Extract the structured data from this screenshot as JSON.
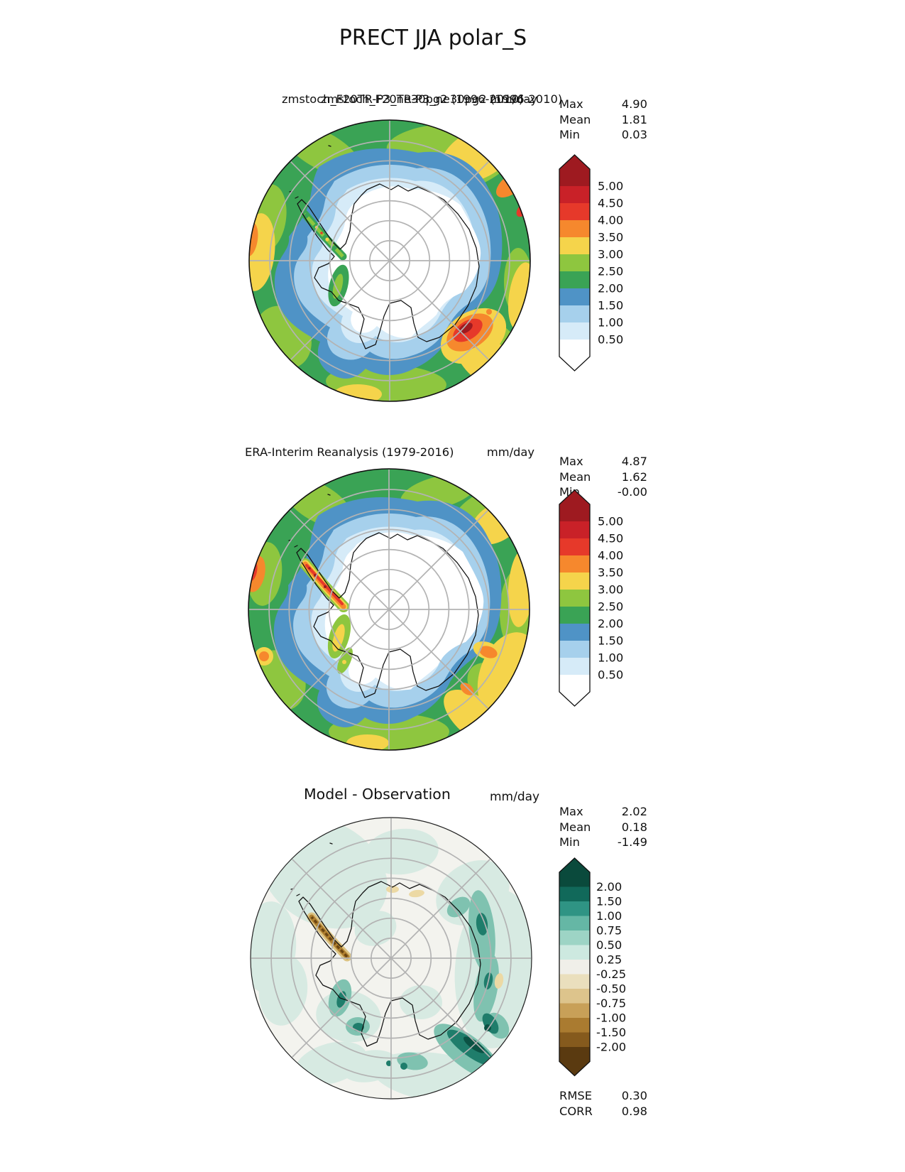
{
  "figure_title": "PRECT JJA polar_S",
  "panels": [
    {
      "kind": "model",
      "title": "zmstoch_F20TR-P3_ne30pg2 (1996-2010)",
      "title_overlap": "zmstoch_F20TR-P3_ne30pg2 (1996-2010)",
      "units": "mm/day",
      "stats": [
        {
          "label": "Max",
          "value": "4.90"
        },
        {
          "label": "Mean",
          "value": "1.81"
        },
        {
          "label": "Min",
          "value": "0.03"
        }
      ],
      "colorbar": {
        "extend": "both",
        "labels": [
          "5.00",
          "4.50",
          "4.00",
          "3.50",
          "3.00",
          "2.50",
          "2.00",
          "1.50",
          "1.00",
          "0.50"
        ],
        "colors_top_to_bottom": [
          "#9e1a20",
          "#c92128",
          "#e6392a",
          "#f6882d",
          "#f5d44b",
          "#8ec63f",
          "#3aa355",
          "#4f93c6",
          "#a6d0ec",
          "#d6ebf8",
          "#ffffff"
        ]
      }
    },
    {
      "kind": "observation",
      "title": "ERA-Interim Reanalysis (1979-2016)",
      "units": "mm/day",
      "stats": [
        {
          "label": "Max",
          "value": "4.87"
        },
        {
          "label": "Mean",
          "value": "1.62"
        },
        {
          "label": "Min",
          "value": "-0.00"
        }
      ],
      "colorbar": {
        "extend": "both",
        "labels": [
          "5.00",
          "4.50",
          "4.00",
          "3.50",
          "3.00",
          "2.50",
          "2.00",
          "1.50",
          "1.00",
          "0.50"
        ],
        "colors_top_to_bottom": [
          "#9e1a20",
          "#c92128",
          "#e6392a",
          "#f6882d",
          "#f5d44b",
          "#8ec63f",
          "#3aa355",
          "#4f93c6",
          "#a6d0ec",
          "#d6ebf8",
          "#ffffff"
        ]
      }
    },
    {
      "kind": "difference",
      "title": "Model - Observation",
      "units": "mm/day",
      "stats": [
        {
          "label": "Max",
          "value": "2.02"
        },
        {
          "label": "Mean",
          "value": "0.18"
        },
        {
          "label": "Min",
          "value": "-1.49"
        }
      ],
      "colorbar": {
        "extend": "both",
        "labels": [
          "2.00",
          "1.50",
          "1.00",
          "0.75",
          "0.50",
          "0.25",
          "-0.25",
          "-0.50",
          "-0.75",
          "-1.00",
          "-1.50",
          "-2.00"
        ],
        "colors_top_to_bottom": [
          "#0a4a3c",
          "#11695a",
          "#2f9484",
          "#65b7a5",
          "#9dd4c5",
          "#cde9e0",
          "#f0efe9",
          "#eadfbd",
          "#ddc48c",
          "#c8a058",
          "#aa7b30",
          "#855a1d",
          "#5a3a10"
        ]
      },
      "metrics": [
        {
          "label": "RMSE",
          "value": "0.30"
        },
        {
          "label": "CORR",
          "value": "0.98"
        }
      ]
    }
  ],
  "chart_data": {
    "type": "heatmap",
    "subtype": "polar-stereographic-south filled contour maps",
    "variable": "PRECT",
    "season": "JJA",
    "region": "polar_S",
    "units": "mm/day",
    "maps": [
      {
        "panel": "top",
        "title": "zmstoch_F20TR-P3_ne30pg2 (1996-2010)",
        "role": "model (test)",
        "stats": {
          "max": 4.9,
          "mean": 1.81,
          "min": 0.03
        },
        "contour_levels": [
          0.5,
          1.0,
          1.5,
          2.0,
          2.5,
          3.0,
          3.5,
          4.0,
          4.5,
          5.0
        ]
      },
      {
        "panel": "middle",
        "title": "ERA-Interim Reanalysis (1979-2016)",
        "role": "reference (observation)",
        "stats": {
          "max": 4.87,
          "mean": 1.62,
          "min": -0.0
        },
        "contour_levels": [
          0.5,
          1.0,
          1.5,
          2.0,
          2.5,
          3.0,
          3.5,
          4.0,
          4.5,
          5.0
        ]
      },
      {
        "panel": "bottom",
        "title": "Model - Observation",
        "role": "difference",
        "stats": {
          "max": 2.02,
          "mean": 0.18,
          "min": -1.49
        },
        "metrics": {
          "rmse": 0.3,
          "corr": 0.98
        },
        "contour_levels": [
          -2.0,
          -1.5,
          -1.0,
          -0.75,
          -0.5,
          -0.25,
          0.25,
          0.5,
          0.75,
          1.0,
          1.5,
          2.0
        ]
      }
    ],
    "latitude_gridlines_deg": [
      -85,
      -80,
      -75,
      -70,
      -65,
      -60
    ],
    "longitude_gridlines_every_deg": 45,
    "legend_position": "right of each map"
  }
}
